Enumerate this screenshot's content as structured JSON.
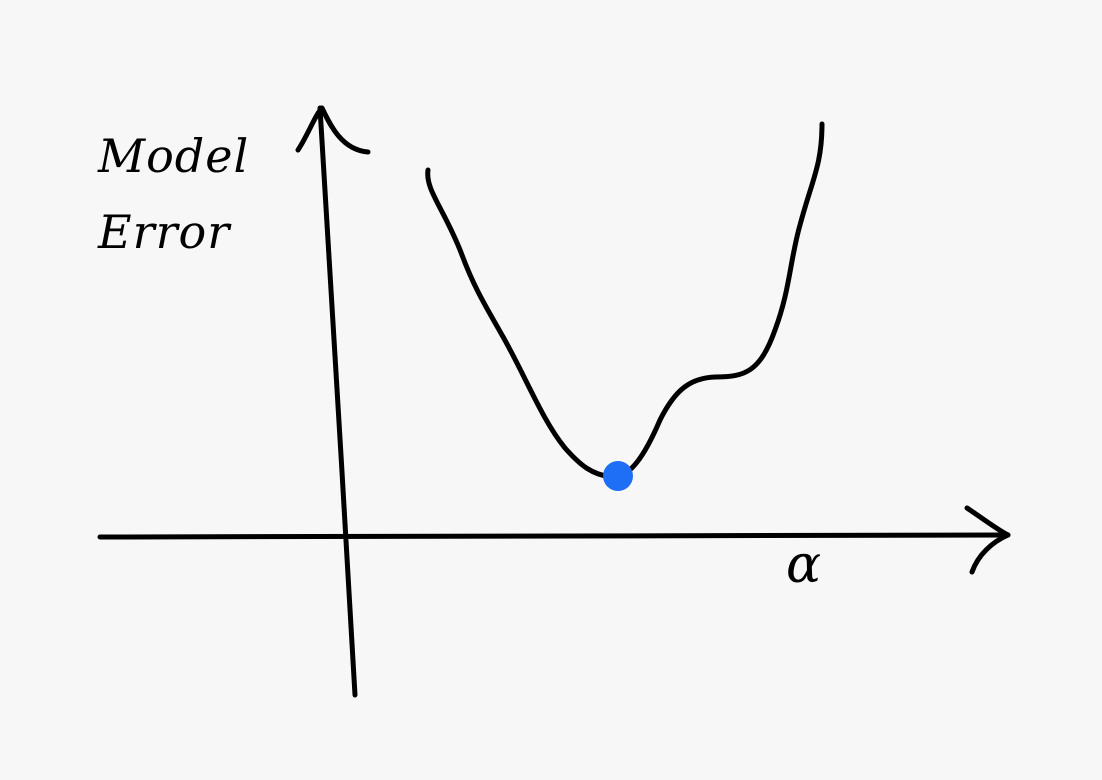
{
  "diagram": {
    "y_axis_label_line1": "Model",
    "y_axis_label_line2": "Error",
    "x_axis_label": "α",
    "minimum_point_color": "#1e6ff5",
    "ink_color": "#000000"
  }
}
